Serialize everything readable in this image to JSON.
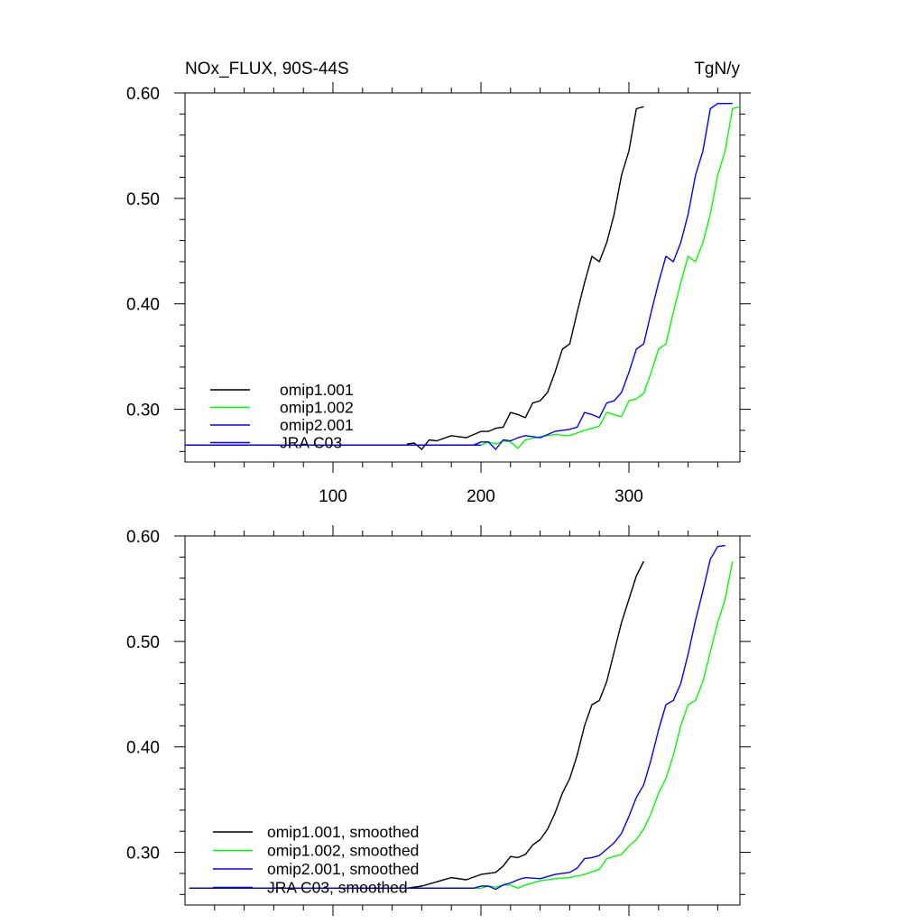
{
  "chart_data": [
    {
      "type": "line",
      "title": "NOx_FLUX, 90S-44S",
      "units": "TgN/y",
      "xlabel": "",
      "ylabel": "",
      "xlim": [
        0,
        375
      ],
      "ylim": [
        0.25,
        0.6
      ],
      "xticks": [
        100,
        200,
        300
      ],
      "xtick_labels": [
        "100",
        "200",
        "300"
      ],
      "yticks": [
        0.3,
        0.4,
        0.5,
        0.6
      ],
      "ytick_labels": [
        "0.30",
        "0.40",
        "0.50",
        "0.60"
      ],
      "legend_position": "bottom-left",
      "series": [
        {
          "name": "omip1.001",
          "color": "#000000",
          "x": [
            150,
            155,
            160,
            165,
            170,
            180,
            190,
            200,
            205,
            210,
            215,
            220,
            225,
            230,
            235,
            240,
            245,
            250,
            255,
            260,
            265,
            270,
            275,
            280,
            285,
            290,
            295,
            300,
            305,
            310
          ],
          "y": [
            0.267,
            0.268,
            0.262,
            0.271,
            0.27,
            0.275,
            0.273,
            0.279,
            0.279,
            0.282,
            0.283,
            0.297,
            0.295,
            0.292,
            0.306,
            0.308,
            0.316,
            0.335,
            0.357,
            0.362,
            0.392,
            0.42,
            0.445,
            0.44,
            0.458,
            0.485,
            0.522,
            0.545,
            0.585,
            0.587
          ]
        },
        {
          "name": "omip1.002",
          "color": "#00ff00",
          "x": [
            0,
            200,
            205,
            210,
            215,
            220,
            225,
            230,
            240,
            250,
            260,
            270,
            280,
            285,
            290,
            295,
            300,
            305,
            310,
            315,
            320,
            325,
            330,
            335,
            340,
            345,
            350,
            355,
            360,
            365,
            370,
            375
          ],
          "y": [
            0.266,
            0.266,
            0.269,
            0.267,
            0.27,
            0.269,
            0.263,
            0.271,
            0.274,
            0.276,
            0.275,
            0.28,
            0.284,
            0.297,
            0.295,
            0.293,
            0.308,
            0.31,
            0.315,
            0.335,
            0.357,
            0.362,
            0.392,
            0.42,
            0.445,
            0.44,
            0.458,
            0.485,
            0.522,
            0.545,
            0.585,
            0.587
          ]
        },
        {
          "name": "omip2.001",
          "color": "#0000ff",
          "x": [
            0,
            195,
            200,
            205,
            210,
            215,
            220,
            225,
            230,
            240,
            250,
            260,
            265,
            270,
            275,
            280,
            285,
            290,
            295,
            300,
            305,
            310,
            315,
            320,
            325,
            330,
            335,
            340,
            345,
            350,
            355,
            360,
            365,
            370
          ],
          "y": [
            0.266,
            0.266,
            0.269,
            0.269,
            0.262,
            0.271,
            0.27,
            0.273,
            0.275,
            0.273,
            0.279,
            0.281,
            0.283,
            0.297,
            0.295,
            0.292,
            0.306,
            0.308,
            0.316,
            0.335,
            0.357,
            0.362,
            0.392,
            0.42,
            0.445,
            0.44,
            0.458,
            0.485,
            0.522,
            0.545,
            0.585,
            0.59,
            0.59,
            0.59
          ]
        },
        {
          "name": "JRA C03",
          "color": "#0000ff",
          "x": [
            0,
            200
          ],
          "y": [
            0.266,
            0.266
          ]
        }
      ]
    },
    {
      "type": "line",
      "title": "",
      "xlabel": "",
      "ylabel": "",
      "xlim": [
        0,
        375
      ],
      "ylim": [
        0.25,
        0.6
      ],
      "xticks": [
        100,
        200,
        300
      ],
      "yticks": [
        0.3,
        0.4,
        0.5,
        0.6
      ],
      "ytick_labels": [
        "0.30",
        "0.40",
        "0.50",
        "0.60"
      ],
      "legend_position": "bottom-left",
      "series": [
        {
          "name": "omip1.001, smoothed",
          "color": "#000000",
          "x": [
            3,
            150,
            160,
            170,
            180,
            190,
            200,
            210,
            215,
            220,
            225,
            230,
            235,
            240,
            245,
            250,
            255,
            260,
            265,
            270,
            275,
            280,
            285,
            290,
            295,
            300,
            305,
            310
          ],
          "y": [
            0.266,
            0.266,
            0.268,
            0.272,
            0.276,
            0.274,
            0.279,
            0.281,
            0.287,
            0.296,
            0.295,
            0.298,
            0.307,
            0.312,
            0.322,
            0.337,
            0.356,
            0.37,
            0.392,
            0.42,
            0.44,
            0.444,
            0.462,
            0.49,
            0.518,
            0.54,
            0.562,
            0.576
          ]
        },
        {
          "name": "omip1.002, smoothed",
          "color": "#00ff00",
          "x": [
            3,
            200,
            205,
            210,
            215,
            220,
            225,
            230,
            240,
            250,
            260,
            270,
            280,
            285,
            290,
            295,
            300,
            305,
            310,
            315,
            320,
            325,
            330,
            335,
            340,
            345,
            350,
            355,
            360,
            365,
            370
          ],
          "y": [
            0.266,
            0.266,
            0.268,
            0.267,
            0.269,
            0.269,
            0.266,
            0.269,
            0.273,
            0.275,
            0.276,
            0.279,
            0.284,
            0.294,
            0.296,
            0.298,
            0.306,
            0.312,
            0.322,
            0.337,
            0.356,
            0.37,
            0.392,
            0.42,
            0.44,
            0.444,
            0.462,
            0.49,
            0.518,
            0.54,
            0.576
          ]
        },
        {
          "name": "omip2.001, smoothed",
          "color": "#0000ff",
          "x": [
            3,
            195,
            200,
            205,
            210,
            215,
            220,
            225,
            230,
            240,
            250,
            260,
            265,
            270,
            275,
            280,
            285,
            290,
            295,
            300,
            305,
            310,
            315,
            320,
            325,
            330,
            335,
            340,
            345,
            350,
            355,
            360,
            365
          ],
          "y": [
            0.266,
            0.266,
            0.268,
            0.268,
            0.265,
            0.269,
            0.271,
            0.274,
            0.276,
            0.275,
            0.279,
            0.281,
            0.285,
            0.294,
            0.295,
            0.297,
            0.303,
            0.309,
            0.318,
            0.334,
            0.352,
            0.364,
            0.388,
            0.416,
            0.44,
            0.444,
            0.46,
            0.488,
            0.52,
            0.548,
            0.578,
            0.59,
            0.591
          ]
        },
        {
          "name": "JRA C03, smoothed",
          "color": "#0000ff",
          "x": [
            3,
            195
          ],
          "y": [
            0.266,
            0.266
          ]
        }
      ]
    }
  ]
}
